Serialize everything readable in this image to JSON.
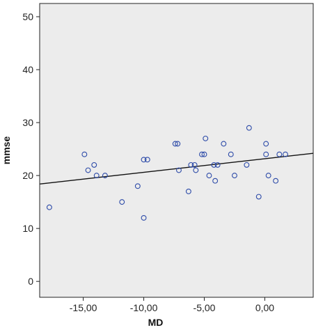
{
  "chart_data": {
    "type": "scatter",
    "xlabel": "MD",
    "ylabel": "mmse",
    "xlim": [
      -18.6,
      4.0
    ],
    "ylim": [
      -3.0,
      52.5
    ],
    "x_ticks": [
      -15,
      -10,
      -5,
      0
    ],
    "x_tick_labels": [
      "-15,00",
      "-10,00",
      "-5,00",
      "0,00"
    ],
    "y_ticks": [
      0,
      10,
      20,
      30,
      40,
      50
    ],
    "y_tick_labels": [
      "0",
      "10",
      "20",
      "30",
      "40",
      "50"
    ],
    "grid": false,
    "legend": "none",
    "points": [
      {
        "x": -17.8,
        "y": 14
      },
      {
        "x": -14.9,
        "y": 24
      },
      {
        "x": -14.6,
        "y": 21
      },
      {
        "x": -14.1,
        "y": 22
      },
      {
        "x": -13.9,
        "y": 20
      },
      {
        "x": -13.2,
        "y": 20
      },
      {
        "x": -11.8,
        "y": 15
      },
      {
        "x": -10.5,
        "y": 18
      },
      {
        "x": -10.0,
        "y": 23
      },
      {
        "x": -10.0,
        "y": 12
      },
      {
        "x": -9.7,
        "y": 23
      },
      {
        "x": -7.4,
        "y": 26
      },
      {
        "x": -7.2,
        "y": 26
      },
      {
        "x": -7.1,
        "y": 21
      },
      {
        "x": -6.3,
        "y": 17
      },
      {
        "x": -6.1,
        "y": 22
      },
      {
        "x": -5.8,
        "y": 22
      },
      {
        "x": -5.7,
        "y": 21
      },
      {
        "x": -5.2,
        "y": 24
      },
      {
        "x": -5.0,
        "y": 24
      },
      {
        "x": -4.9,
        "y": 27
      },
      {
        "x": -4.6,
        "y": 20
      },
      {
        "x": -4.2,
        "y": 22
      },
      {
        "x": -4.1,
        "y": 19
      },
      {
        "x": -3.9,
        "y": 22
      },
      {
        "x": -3.4,
        "y": 26
      },
      {
        "x": -2.8,
        "y": 24
      },
      {
        "x": -2.5,
        "y": 20
      },
      {
        "x": -1.5,
        "y": 22
      },
      {
        "x": -1.3,
        "y": 29
      },
      {
        "x": -0.5,
        "y": 16
      },
      {
        "x": 0.1,
        "y": 24
      },
      {
        "x": 0.1,
        "y": 26
      },
      {
        "x": 0.3,
        "y": 20
      },
      {
        "x": 0.9,
        "y": 19
      },
      {
        "x": 1.2,
        "y": 24
      },
      {
        "x": 1.7,
        "y": 24
      }
    ],
    "fit_line": {
      "x": [
        -18.6,
        4.0
      ],
      "y": [
        18.4,
        24.2
      ]
    },
    "colors": {
      "plot_background": "#ececec",
      "marker_stroke": "#2c4aa8",
      "fit_line": "#111111",
      "axes": "#222222"
    }
  }
}
